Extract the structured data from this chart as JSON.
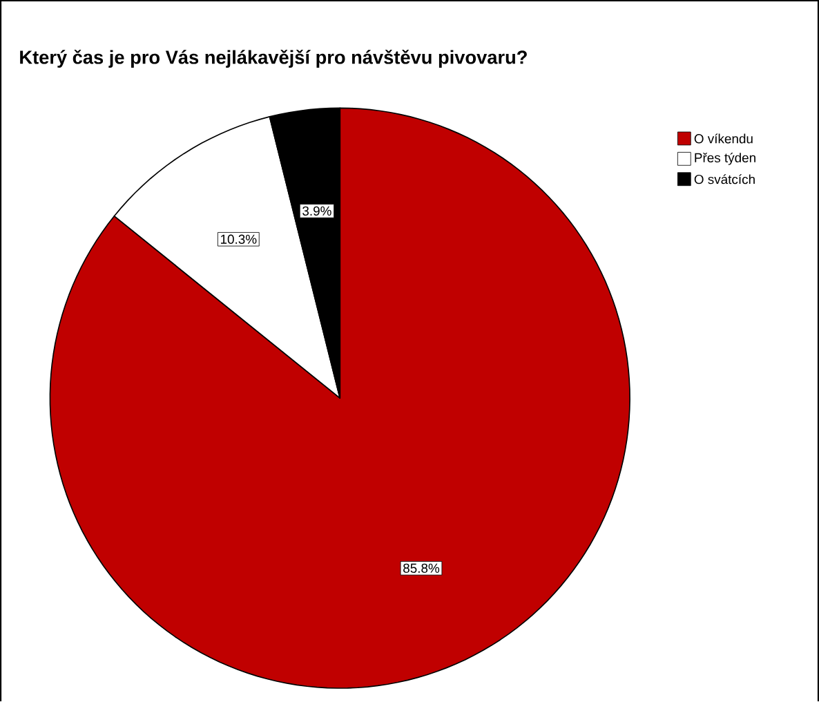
{
  "chart_data": {
    "type": "pie",
    "title": "Který čas je pro Vás nejlákavější pro návštěvu pivovaru?",
    "categories": [
      "O víkendu",
      "Přes týden",
      "O svátcích"
    ],
    "values": [
      85.8,
      10.3,
      3.9
    ],
    "colors": [
      "#c00000",
      "#ffffff",
      "#000000"
    ],
    "value_labels": [
      "85.8%",
      "10.3%",
      "3.9%"
    ],
    "legend": "right"
  }
}
